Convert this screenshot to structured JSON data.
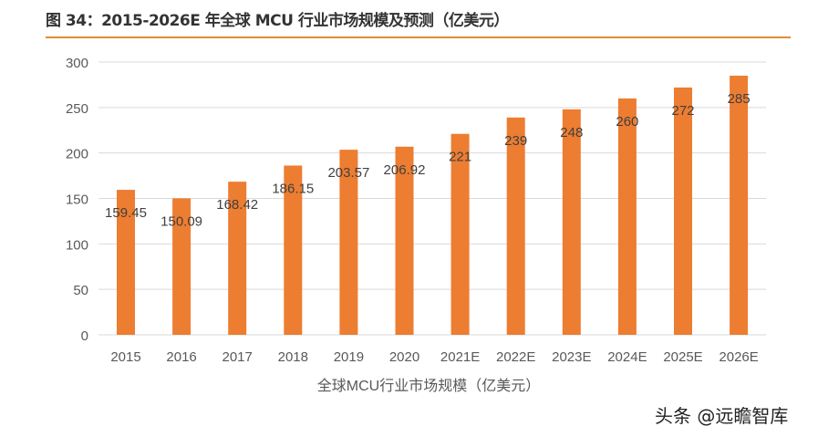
{
  "title": "图 34：2015-2026E 年全球 MCU 行业市场规模及预测（亿美元）",
  "watermark": "头条 @远瞻智库",
  "chart_data": {
    "type": "bar",
    "categories": [
      "2015",
      "2016",
      "2017",
      "2018",
      "2019",
      "2020",
      "2021E",
      "2022E",
      "2023E",
      "2024E",
      "2025E",
      "2026E"
    ],
    "values": [
      159.45,
      150.09,
      168.42,
      186.15,
      203.57,
      206.92,
      221,
      239,
      248,
      260,
      272,
      285
    ],
    "data_labels": [
      "159.45",
      "150.09",
      "168.42",
      "186.15",
      "203.57",
      "206.92",
      "221",
      "239",
      "248",
      "260",
      "272",
      "285"
    ],
    "xlabel": "全球MCU行业市场规模（亿美元）",
    "ylabel": "",
    "ylim": [
      0,
      300
    ],
    "yticks": [
      0,
      50,
      100,
      150,
      200,
      250,
      300
    ],
    "grid": true,
    "bar_color": "#ed7d31",
    "legend": "none"
  }
}
